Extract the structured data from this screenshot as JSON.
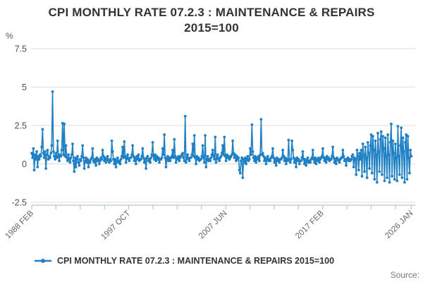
{
  "header": {
    "title_line1": "CPI MONTHLY RATE 07.2.3 : MAINTENANCE & REPAIRS",
    "title_line2": "2015=100"
  },
  "legend": {
    "label": "CPI MONTHLY RATE 07.2.3 : MAINTENANCE & REPAIRS 2015=100"
  },
  "footer": {
    "source_label": "Source:"
  },
  "colors": {
    "line": "#1F80C4",
    "title_text": "#333333",
    "ytick_text": "#4D4D4D",
    "xtick_text": "#666666",
    "gridline": "#DDDDDD",
    "axis_line": "#B4C5D6",
    "background": "#FFFFFF"
  },
  "chart_data": {
    "type": "line",
    "title": "CPI MONTHLY RATE 07.2.3 : MAINTENANCE & REPAIRS 2015=100",
    "unit_label": "%",
    "ylabel": "%",
    "xlabel": "",
    "ylim": [
      -2.5,
      7.5
    ],
    "yticks": [
      7.5,
      5,
      2.5,
      0,
      -2.5
    ],
    "grid": true,
    "legend_position": "bottom",
    "frequency": "monthly",
    "x_start": "1988 FEB",
    "x_end": "2026 JAN",
    "xtick_labels": [
      "1988 FEB",
      "1997 OCT",
      "2007 JUN",
      "2017 FEB",
      "2026 JAN"
    ],
    "xtick_month_index": [
      0,
      116,
      232,
      348,
      455
    ],
    "series": [
      {
        "name": "CPI MONTHLY RATE 07.2.3 : MAINTENANCE & REPAIRS 2015=100",
        "color": "#1F80C4",
        "values": [
          0.7,
          0.4,
          1.0,
          -0.4,
          0.6,
          0.3,
          0.8,
          -0.2,
          0.5,
          0.3,
          0.6,
          0.5,
          1.1,
          2.25,
          0.7,
          0.4,
          0.8,
          -0.3,
          0.6,
          0.9,
          0.3,
          0.5,
          0.4,
          0.7,
          1.2,
          4.7,
          0.8,
          0.5,
          0.3,
          0.7,
          0.4,
          1.5,
          0.5,
          0.2,
          0.6,
          0.5,
          0.9,
          2.65,
          0.6,
          2.6,
          0.5,
          1.2,
          0.4,
          0.2,
          0.6,
          0.3,
          0.1,
          0.4,
          0.6,
          1.3,
          0.2,
          -0.5,
          0.4,
          -0.2,
          0.3,
          0.5,
          0.1,
          -0.1,
          0.3,
          0.2,
          0.5,
          1.2,
          0.4,
          -0.3,
          0.2,
          0.4,
          0.1,
          0.3,
          -0.2,
          0.2,
          0.1,
          0.3,
          0.4,
          1.0,
          0.2,
          0.1,
          0.3,
          -0.1,
          0.4,
          0.2,
          0.3,
          0.0,
          0.2,
          0.4,
          0.3,
          0.9,
          0.5,
          0.2,
          0.4,
          0.1,
          0.3,
          0.5,
          0.2,
          0.1,
          0.3,
          0.2,
          1.5,
          0.8,
          0.3,
          0.0,
          0.3,
          -0.2,
          0.2,
          0.4,
          0.1,
          0.2,
          0.0,
          0.3,
          0.5,
          1.1,
          0.4,
          1.45,
          0.5,
          0.1,
          0.4,
          0.6,
          0.3,
          0.2,
          0.4,
          0.4,
          0.6,
          1.2,
          0.5,
          0.2,
          0.4,
          0.0,
          0.5,
          0.3,
          0.6,
          0.2,
          0.3,
          0.3,
          0.5,
          1.0,
          0.4,
          0.1,
          0.3,
          -0.3,
          0.4,
          0.5,
          0.2,
          0.3,
          0.1,
          0.4,
          0.6,
          1.4,
          0.5,
          0.3,
          0.6,
          0.2,
          0.5,
          0.3,
          0.4,
          0.1,
          0.3,
          0.3,
          0.4,
          1.0,
          0.6,
          1.9,
          0.4,
          -0.2,
          0.3,
          0.5,
          0.2,
          0.4,
          0.2,
          0.4,
          0.5,
          0.9,
          0.4,
          1.6,
          0.5,
          0.1,
          0.4,
          0.3,
          0.5,
          0.2,
          0.4,
          0.5,
          0.6,
          0.7,
          0.4,
          0.2,
          3.1,
          0.1,
          0.4,
          0.6,
          0.3,
          0.2,
          0.4,
          0.4,
          0.6,
          1.3,
          0.5,
          1.85,
          0.4,
          0.0,
          0.5,
          0.3,
          0.4,
          0.2,
          0.3,
          0.3,
          0.5,
          1.2,
          0.4,
          0.1,
          1.85,
          -0.2,
          0.3,
          0.5,
          0.2,
          0.3,
          0.2,
          0.4,
          0.6,
          0.9,
          0.5,
          0.3,
          1.75,
          0.1,
          0.4,
          0.6,
          0.3,
          0.2,
          0.4,
          0.5,
          0.7,
          1.2,
          0.6,
          1.75,
          0.5,
          0.2,
          0.6,
          0.4,
          0.5,
          0.3,
          0.4,
          0.5,
          0.6,
          1.5,
          0.7,
          0.4,
          0.6,
          0.2,
          0.5,
          0.3,
          0.4,
          -0.4,
          -0.6,
          0.2,
          0.4,
          -0.9,
          0.3,
          0.1,
          0.4,
          0.0,
          0.3,
          0.5,
          0.2,
          0.3,
          1.0,
          0.6,
          2.55,
          0.8,
          0.4,
          0.2,
          0.5,
          0.1,
          0.4,
          0.3,
          0.5,
          0.2,
          0.6,
          2.9,
          0.6,
          0.7,
          0.5,
          0.2,
          0.4,
          0.0,
          0.3,
          0.5,
          0.2,
          0.3,
          0.2,
          0.4,
          0.5,
          1.0,
          0.4,
          0.1,
          0.3,
          -0.1,
          0.4,
          0.2,
          0.3,
          0.1,
          0.3,
          0.3,
          0.4,
          0.9,
          0.5,
          0.2,
          0.4,
          0.0,
          0.3,
          0.2,
          1.55,
          0.3,
          0.1,
          0.3,
          1.5,
          0.9,
          0.4,
          0.1,
          0.3,
          -0.2,
          0.4,
          0.2,
          0.3,
          0.0,
          0.2,
          0.2,
          0.4,
          0.8,
          0.3,
          0.0,
          0.3,
          -0.1,
          0.2,
          0.4,
          0.1,
          0.2,
          0.1,
          0.3,
          0.4,
          0.9,
          0.3,
          0.1,
          0.4,
          0.0,
          0.3,
          0.2,
          0.4,
          0.1,
          0.3,
          0.4,
          0.5,
          1.0,
          0.4,
          0.2,
          0.4,
          0.1,
          0.5,
          0.3,
          0.4,
          0.2,
          0.3,
          0.3,
          0.5,
          1.1,
          0.4,
          0.1,
          0.3,
          0.0,
          0.4,
          0.3,
          0.2,
          0.1,
          0.3,
          0.4,
          0.4,
          0.9,
          0.5,
          0.2,
          0.3,
          -0.1,
          0.3,
          0.4,
          0.2,
          0.3,
          0.2,
          0.3,
          0.5,
          0.6,
          -0.2,
          0.4,
          0.3,
          -0.7,
          0.9,
          0.5,
          -0.4,
          0.7,
          0.3,
          0.9,
          -0.8,
          1.3,
          0.6,
          -0.5,
          1.1,
          0.4,
          -0.9,
          1.4,
          0.7,
          -0.3,
          1.2,
          1.9,
          -0.6,
          1.8,
          0.9,
          -1.0,
          1.5,
          0.6,
          -1.2,
          2.0,
          0.8,
          -0.5,
          1.6,
          2.1,
          -0.7,
          1.8,
          1.0,
          -1.1,
          1.7,
          0.5,
          -0.9,
          1.9,
          0.6,
          -1.2,
          1.4,
          2.6,
          -0.8,
          1.5,
          0.7,
          -1.0,
          1.3,
          0.4,
          -1.1,
          2.45,
          0.5,
          -0.7,
          1.2,
          2.35,
          -0.9,
          1.7,
          0.8,
          -1.2,
          1.4,
          1.9,
          -1.0,
          1.8,
          0.4,
          -0.6,
          0.9,
          0.5
        ]
      }
    ]
  }
}
